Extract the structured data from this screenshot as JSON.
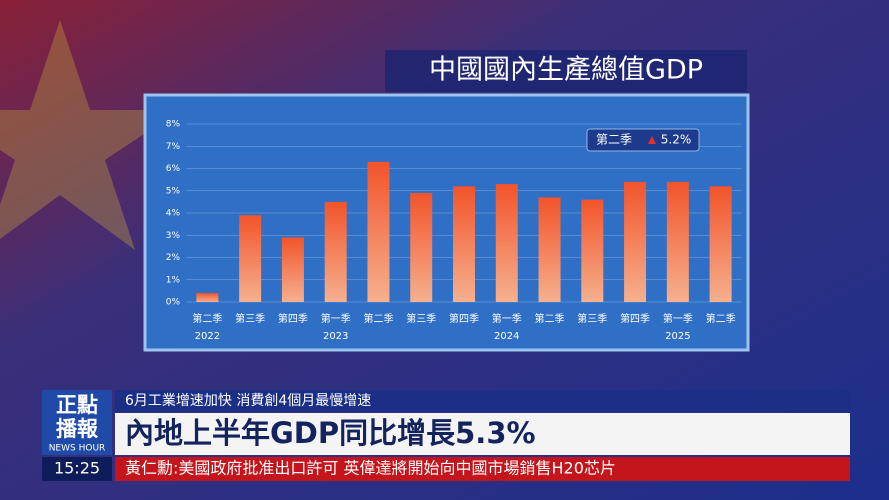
{
  "chart_data": {
    "type": "bar",
    "title": "中國國內生產總值GDP",
    "categories": [
      "第二季",
      "第三季",
      "第四季",
      "第一季",
      "第二季",
      "第三季",
      "第四季",
      "第一季",
      "第二季",
      "第三季",
      "第四季",
      "第一季",
      "第二季"
    ],
    "years": [
      "2022",
      null,
      null,
      "2023",
      null,
      null,
      null,
      "2024",
      null,
      null,
      null,
      "2025",
      null
    ],
    "values": [
      0.4,
      3.9,
      2.9,
      4.5,
      6.3,
      4.9,
      5.2,
      5.3,
      4.7,
      4.6,
      5.4,
      5.4,
      5.2
    ],
    "color": "#f0602a",
    "ylim": [
      0,
      8
    ],
    "yticks": [
      {
        "value": 0,
        "label": "0%"
      },
      {
        "value": 1,
        "label": "1%"
      },
      {
        "value": 2,
        "label": "2%"
      },
      {
        "value": 3,
        "label": "3%"
      },
      {
        "value": 4,
        "label": "4%"
      },
      {
        "value": 5,
        "label": "5%"
      },
      {
        "value": 6,
        "label": "6%"
      },
      {
        "value": 7,
        "label": "7%"
      },
      {
        "value": 8,
        "label": "8%"
      }
    ],
    "grid": true,
    "highlight": {
      "label": "第二季",
      "text": "5.2%"
    }
  },
  "logo": {
    "line1": "正點",
    "line2": "播報",
    "sub": "NEWS HOUR"
  },
  "headline": {
    "kicker": "6月工業增速加快 消費創4個月最慢增速",
    "main": "內地上半年GDP同比增長5.3%"
  },
  "clock": "15:25",
  "ticker": "黃仁勳:美國政府批准出口許可  英偉達將開始向中國市場銷售H20芯片"
}
